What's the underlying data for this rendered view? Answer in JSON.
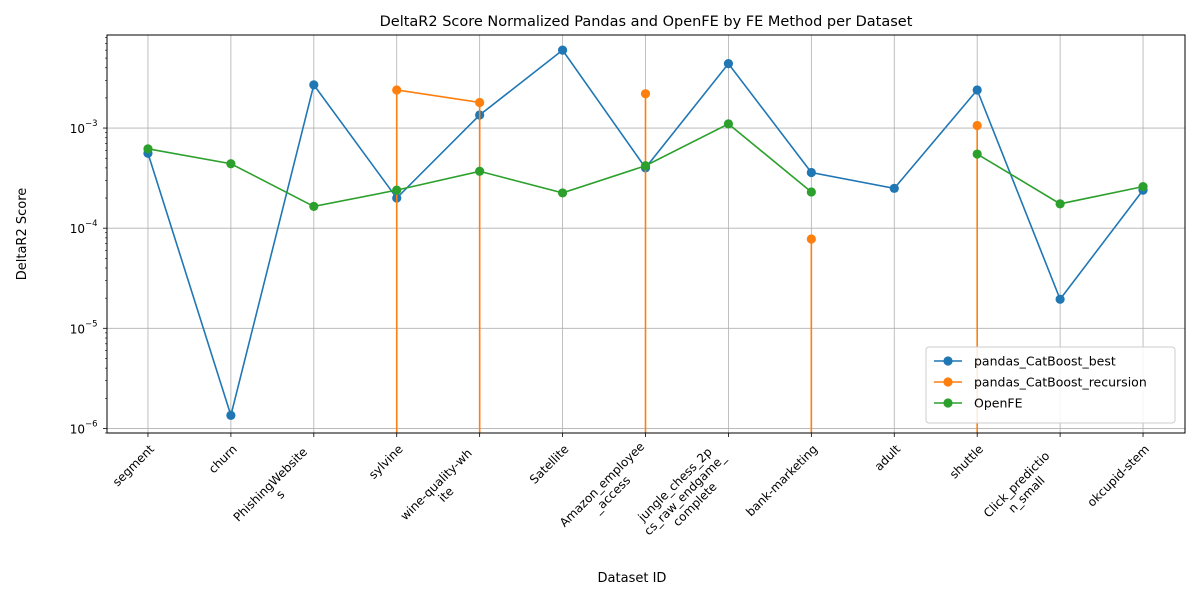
{
  "chart_data": {
    "type": "line",
    "title": "DeltaR2 Score Normalized Pandas and OpenFE by FE Method per Dataset",
    "xlabel": "Dataset ID",
    "ylabel": "DeltaR2 Score",
    "yscale": "log",
    "ylim": [
      9e-07,
      0.0085
    ],
    "y_ticks": [
      {
        "value": 1e-06,
        "label": "10",
        "exp": "−6"
      },
      {
        "value": 1e-05,
        "label": "10",
        "exp": "−5"
      },
      {
        "value": 0.0001,
        "label": "10",
        "exp": "−4"
      },
      {
        "value": 0.001,
        "label": "10",
        "exp": "−3"
      }
    ],
    "categories": [
      [
        "segment"
      ],
      [
        "churn"
      ],
      [
        "PhishingWebsite",
        "s"
      ],
      [
        "sylvine"
      ],
      [
        "wine-quality-wh",
        "ite"
      ],
      [
        "Satellite"
      ],
      [
        "Amazon_employee",
        "_access"
      ],
      [
        "jungle_chess_2p",
        "cs_raw_endgame_",
        "complete"
      ],
      [
        "bank-marketing"
      ],
      [
        "adult"
      ],
      [
        "shuttle"
      ],
      [
        "Click_predictio",
        "n_small"
      ],
      [
        "okcupid-stem"
      ]
    ],
    "grid": true,
    "legend_position": "lower-right",
    "series": [
      {
        "name": "pandas_CatBoost_best",
        "color": "#1f77b4",
        "values": [
          0.00056,
          1.35e-06,
          0.0027,
          0.0002,
          0.00135,
          0.006,
          0.0004,
          0.0044,
          0.00036,
          0.00025,
          0.0024,
          1.95e-05,
          0.00024
        ]
      },
      {
        "name": "pandas_CatBoost_recursion",
        "color": "#ff7f0e",
        "values": [
          null,
          null,
          null,
          0.0024,
          0.0018,
          null,
          0.0022,
          null,
          7.8e-05,
          null,
          0.00106,
          null,
          null
        ],
        "drop_to_bottom": true
      },
      {
        "name": "OpenFE",
        "color": "#2ca02c",
        "values": [
          0.00062,
          0.00044,
          0.000165,
          0.00024,
          0.00037,
          0.000225,
          0.00042,
          0.0011,
          0.00023,
          null,
          0.00055,
          0.000175,
          0.00026
        ]
      }
    ]
  }
}
